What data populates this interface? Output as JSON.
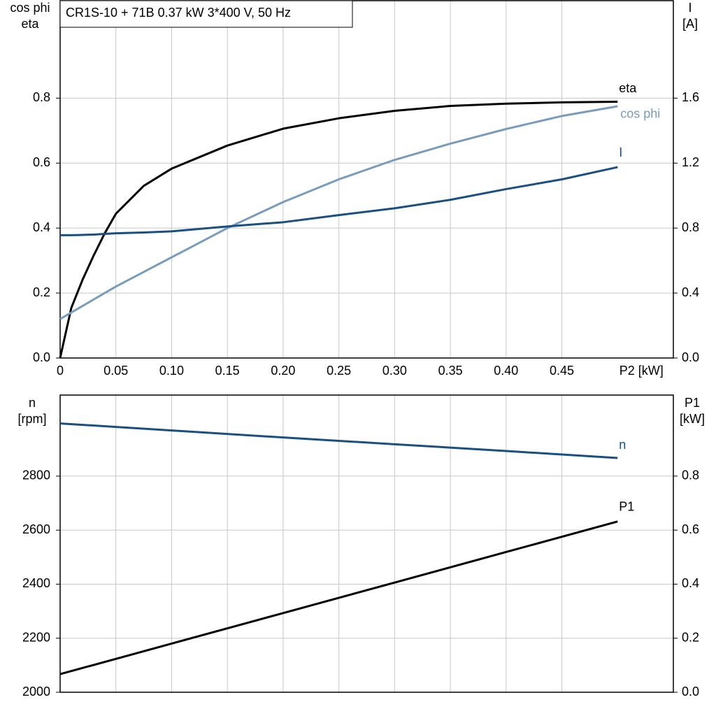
{
  "chart_data": [
    {
      "type": "line",
      "title": "CR1S-10 + 71B   0.37 kW   3*400 V, 50 Hz",
      "ylabel": [
        "cos phi",
        "eta"
      ],
      "y2label": [
        "I",
        "[A]"
      ],
      "xlabel": "P2 [kW]",
      "x": [
        0,
        0.01,
        0.02,
        0.03,
        0.04,
        0.05,
        0.075,
        0.1,
        0.15,
        0.2,
        0.25,
        0.3,
        0.35,
        0.4,
        0.45,
        0.5
      ],
      "xlim": [
        0,
        0.55
      ],
      "xticks": [
        {
          "value": 0,
          "label": "0"
        },
        0.05,
        {
          "value": 0.1,
          "label": "0.10"
        },
        0.15,
        {
          "value": 0.2,
          "label": "0.20"
        },
        0.25,
        {
          "value": 0.3,
          "label": "0.30"
        },
        0.35,
        {
          "value": 0.4,
          "label": "0.40"
        },
        0.45
      ],
      "ylim": [
        0,
        1.1
      ],
      "yticks": [
        {
          "value": 0,
          "label": "0.0"
        },
        0.2,
        0.4,
        0.6,
        0.8
      ],
      "y2lim": [
        0,
        2.2
      ],
      "y2ticks": [
        {
          "value": 0,
          "label": "0.0"
        },
        0.4,
        0.8,
        1.2,
        1.6
      ],
      "grid": true,
      "series": [
        {
          "name": "eta",
          "color": "#000000",
          "values": [
            0,
            0.154,
            0.24,
            0.315,
            0.384,
            0.444,
            0.53,
            0.583,
            0.654,
            0.706,
            0.738,
            0.761,
            0.776,
            0.783,
            0.787,
            0.789
          ]
        },
        {
          "name": "cos phi",
          "color": "#7a9cbb",
          "values": [
            0.12,
            0.14,
            0.16,
            0.18,
            0.2,
            0.22,
            0.265,
            0.31,
            0.4,
            0.48,
            0.55,
            0.61,
            0.66,
            0.705,
            0.745,
            0.775
          ]
        },
        {
          "name": "I",
          "color": "#1a4f80",
          "axis": "y2",
          "values": [
            0.756,
            0.756,
            0.758,
            0.76,
            0.764,
            0.768,
            0.773,
            0.78,
            0.81,
            0.836,
            0.88,
            0.922,
            0.974,
            1.04,
            1.1,
            1.175
          ]
        }
      ]
    },
    {
      "type": "line",
      "ylabel": [
        "n",
        "[rpm]"
      ],
      "y2label": [
        "P1",
        "[kW]"
      ],
      "x": [
        0,
        0.1,
        0.2,
        0.3,
        0.4,
        0.5
      ],
      "xlim": [
        0,
        0.55
      ],
      "ylim": [
        2000,
        3100
      ],
      "yticks": [
        2000,
        2200,
        2400,
        2600,
        2800
      ],
      "y2lim": [
        0,
        1.1
      ],
      "y2ticks": [
        {
          "value": 0,
          "label": "0.0"
        },
        0.2,
        0.4,
        0.6,
        0.8
      ],
      "grid": true,
      "series": [
        {
          "name": "n",
          "color": "#1a4f80",
          "values": [
            2995,
            2969,
            2943,
            2918,
            2893,
            2867
          ]
        },
        {
          "name": "P1",
          "color": "#000000",
          "axis": "y2",
          "values": [
            0.067,
            0.18,
            0.293,
            0.406,
            0.519,
            0.632
          ]
        }
      ]
    }
  ]
}
